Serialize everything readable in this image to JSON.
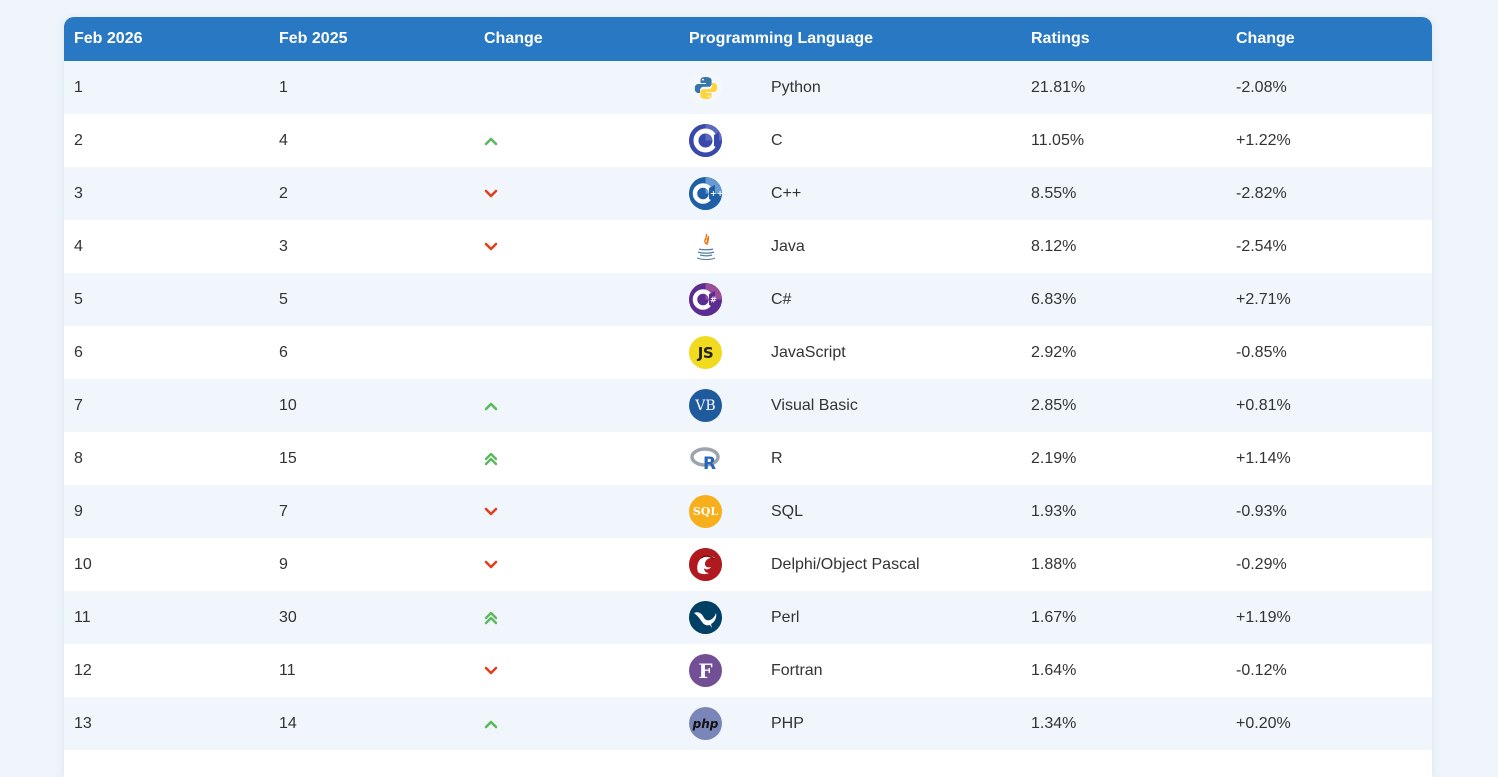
{
  "table": {
    "headers": [
      "Feb 2026",
      "Feb 2025",
      "Change",
      "Programming Language",
      "Ratings",
      "Change"
    ],
    "rows": [
      {
        "now": "1",
        "prev": "1",
        "trend": "none",
        "icon": "python-logo-icon",
        "language": "Python",
        "rating": "21.81%",
        "change": "-2.08%"
      },
      {
        "now": "2",
        "prev": "4",
        "trend": "up",
        "icon": "c-logo-icon",
        "language": "C",
        "rating": "11.05%",
        "change": "+1.22%"
      },
      {
        "now": "3",
        "prev": "2",
        "trend": "down",
        "icon": "cpp-logo-icon",
        "language": "C++",
        "rating": "8.55%",
        "change": "-2.82%"
      },
      {
        "now": "4",
        "prev": "3",
        "trend": "down",
        "icon": "java-logo-icon",
        "language": "Java",
        "rating": "8.12%",
        "change": "-2.54%"
      },
      {
        "now": "5",
        "prev": "5",
        "trend": "none",
        "icon": "csharp-logo-icon",
        "language": "C#",
        "rating": "6.83%",
        "change": "+2.71%"
      },
      {
        "now": "6",
        "prev": "6",
        "trend": "none",
        "icon": "javascript-logo-icon",
        "language": "JavaScript",
        "rating": "2.92%",
        "change": "-0.85%"
      },
      {
        "now": "7",
        "prev": "10",
        "trend": "up",
        "icon": "visual-basic-logo-icon",
        "language": "Visual Basic",
        "rating": "2.85%",
        "change": "+0.81%"
      },
      {
        "now": "8",
        "prev": "15",
        "trend": "double-up",
        "icon": "r-logo-icon",
        "language": "R",
        "rating": "2.19%",
        "change": "+1.14%"
      },
      {
        "now": "9",
        "prev": "7",
        "trend": "down",
        "icon": "sql-logo-icon",
        "language": "SQL",
        "rating": "1.93%",
        "change": "-0.93%"
      },
      {
        "now": "10",
        "prev": "9",
        "trend": "down",
        "icon": "delphi-logo-icon",
        "language": "Delphi/Object Pascal",
        "rating": "1.88%",
        "change": "-0.29%"
      },
      {
        "now": "11",
        "prev": "30",
        "trend": "double-up",
        "icon": "perl-logo-icon",
        "language": "Perl",
        "rating": "1.67%",
        "change": "+1.19%"
      },
      {
        "now": "12",
        "prev": "11",
        "trend": "down",
        "icon": "fortran-logo-icon",
        "language": "Fortran",
        "rating": "1.64%",
        "change": "-0.12%"
      },
      {
        "now": "13",
        "prev": "14",
        "trend": "up",
        "icon": "php-logo-icon",
        "language": "PHP",
        "rating": "1.34%",
        "change": "+0.20%"
      }
    ],
    "logo_text": {
      "js": "JS",
      "vb": "VB",
      "r": "R",
      "sql": "SQL",
      "fortran": "F",
      "php": "php"
    }
  },
  "colors": {
    "header_bg": "#2878c4",
    "trend_up": "#5cb85c",
    "trend_down": "#e0401c"
  }
}
